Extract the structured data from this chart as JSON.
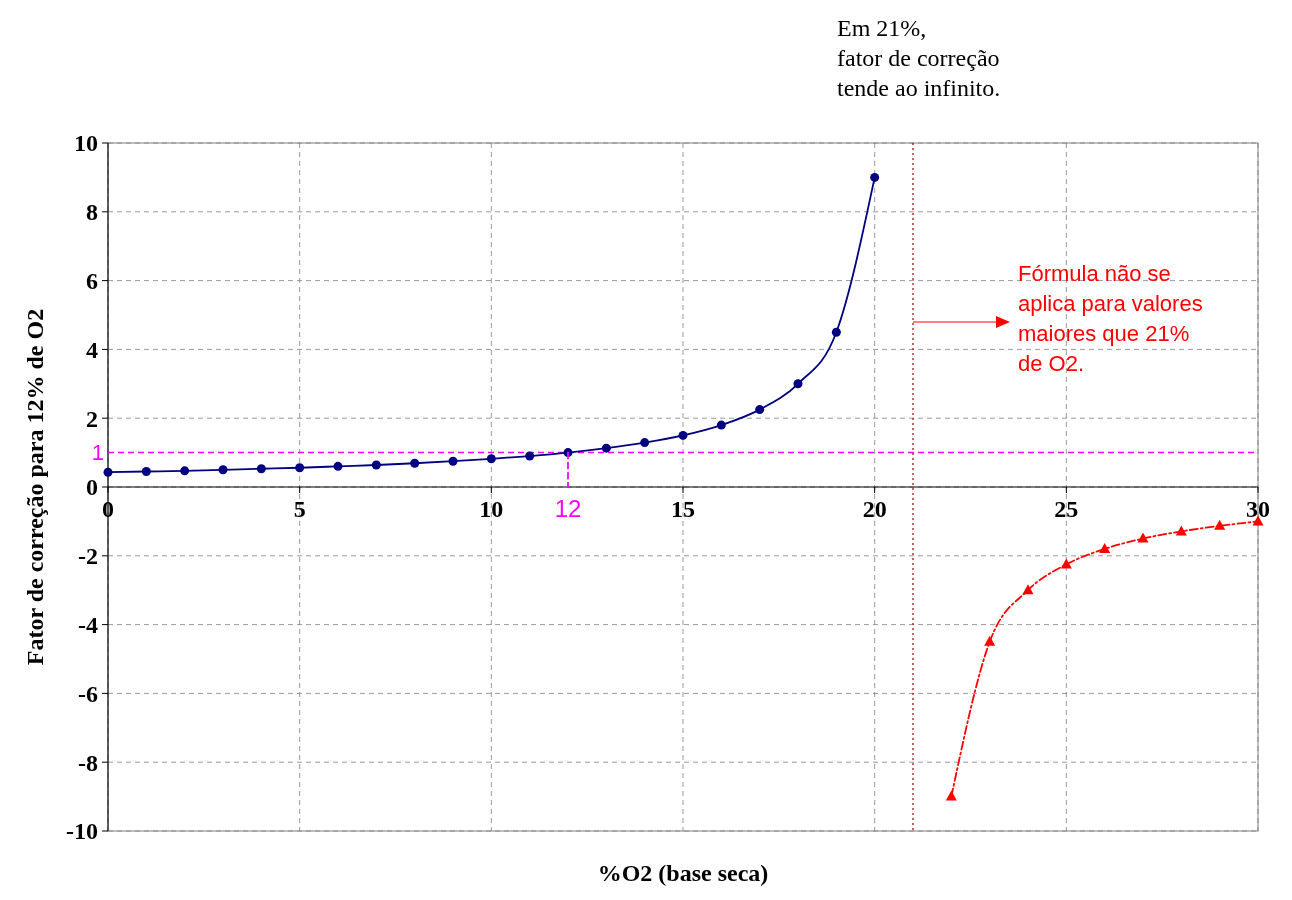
{
  "chart_data": {
    "type": "line",
    "xlabel": "%O2 (base seca)",
    "ylabel": "Fator de correção para 12% de O2",
    "xlim": [
      0,
      30
    ],
    "xticks": [
      0,
      5,
      10,
      15,
      20,
      25,
      30
    ],
    "ylim": [
      -10,
      10
    ],
    "yticks": [
      -10,
      -8,
      -6,
      -4,
      -2,
      0,
      2,
      4,
      6,
      8,
      10
    ],
    "grid": true,
    "series": [
      {
        "color": "#000080",
        "marker": "circle",
        "line_style": "solid",
        "x": [
          0,
          1,
          2,
          3,
          4,
          5,
          6,
          7,
          8,
          9,
          10,
          11,
          12,
          13,
          14,
          15,
          16,
          17,
          18,
          19,
          20
        ],
        "values": [
          0.43,
          0.45,
          0.47,
          0.5,
          0.53,
          0.56,
          0.6,
          0.64,
          0.69,
          0.75,
          0.82,
          0.9,
          1,
          1.13,
          1.29,
          1.5,
          1.8,
          2.25,
          3,
          4.5,
          9
        ]
      },
      {
        "color": "#ff0000",
        "marker": "triangle",
        "line_style": "dashed",
        "x": [
          22,
          23,
          24,
          25,
          26,
          27,
          28,
          29,
          30
        ],
        "values": [
          -9,
          -4.5,
          -3,
          -2.25,
          -1.8,
          -1.5,
          -1.29,
          -1.13,
          -1
        ]
      },
      {
        "color": "#ff00ff",
        "marker": "none",
        "line_style": "dashed",
        "x": [
          12,
          12
        ],
        "values": [
          1,
          0
        ]
      }
    ],
    "ref_lines": [
      {
        "axis": "y",
        "value": 1,
        "label": "1",
        "color": "#ff00ff",
        "line_style": "dashed"
      },
      {
        "axis": "x",
        "value": 21,
        "color": "#990000",
        "line_style": "dotted"
      }
    ],
    "annotations": [
      "Em 21%,\nfator de correção\ntende ao infinito.",
      "Fórmula não se\naplica para valores\nmaiores que 21%\nde O2.",
      {
        "text": "12",
        "x": 12,
        "y": 0
      }
    ]
  }
}
